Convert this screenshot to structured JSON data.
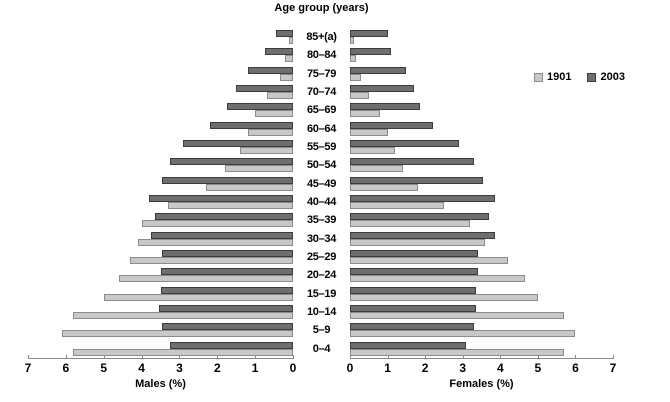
{
  "chart_data": {
    "type": "bar",
    "variant": "population_pyramid",
    "title": "Age group (years)",
    "grid": false,
    "legend_position": "right",
    "legend": [
      {
        "label": "1901",
        "fill": "#c8c8c8",
        "border": "#8c8c8c"
      },
      {
        "label": "2003",
        "fill": "#6e6e6e",
        "border": "#3c3c3c"
      }
    ],
    "categories": [
      "85+(a)",
      "80–84",
      "75–79",
      "70–74",
      "65–69",
      "60–64",
      "55–59",
      "50–54",
      "45–49",
      "40–44",
      "35–39",
      "30–34",
      "25–29",
      "20–24",
      "15–19",
      "10–14",
      "5–9",
      "0–4"
    ],
    "xlim": [
      0,
      7
    ],
    "male": {
      "xlabel": "Males (%)",
      "tick_labels": [
        "7",
        "6",
        "5",
        "4",
        "3",
        "2",
        "1",
        "0"
      ],
      "series": [
        {
          "name": "2003",
          "values": [
            0.45,
            0.75,
            1.2,
            1.5,
            1.75,
            2.2,
            2.9,
            3.25,
            3.45,
            3.8,
            3.65,
            3.75,
            3.45,
            3.5,
            3.5,
            3.55,
            3.45,
            3.25
          ]
        },
        {
          "name": "1901",
          "values": [
            0.1,
            0.2,
            0.35,
            0.7,
            1.0,
            1.2,
            1.4,
            1.8,
            2.3,
            3.3,
            4.0,
            4.1,
            4.3,
            4.6,
            5.0,
            5.8,
            6.1,
            5.8
          ]
        }
      ]
    },
    "female": {
      "xlabel": "Females (%)",
      "tick_labels": [
        "0",
        "1",
        "2",
        "3",
        "4",
        "5",
        "6",
        "7"
      ],
      "series": [
        {
          "name": "2003",
          "values": [
            1.0,
            1.1,
            1.5,
            1.7,
            1.85,
            2.2,
            2.9,
            3.3,
            3.55,
            3.85,
            3.7,
            3.85,
            3.4,
            3.4,
            3.35,
            3.35,
            3.3,
            3.1
          ]
        },
        {
          "name": "1901",
          "values": [
            0.1,
            0.15,
            0.3,
            0.5,
            0.8,
            1.0,
            1.2,
            1.4,
            1.8,
            2.5,
            3.2,
            3.6,
            4.2,
            4.65,
            5.0,
            5.7,
            6.0,
            5.7
          ]
        }
      ]
    }
  }
}
